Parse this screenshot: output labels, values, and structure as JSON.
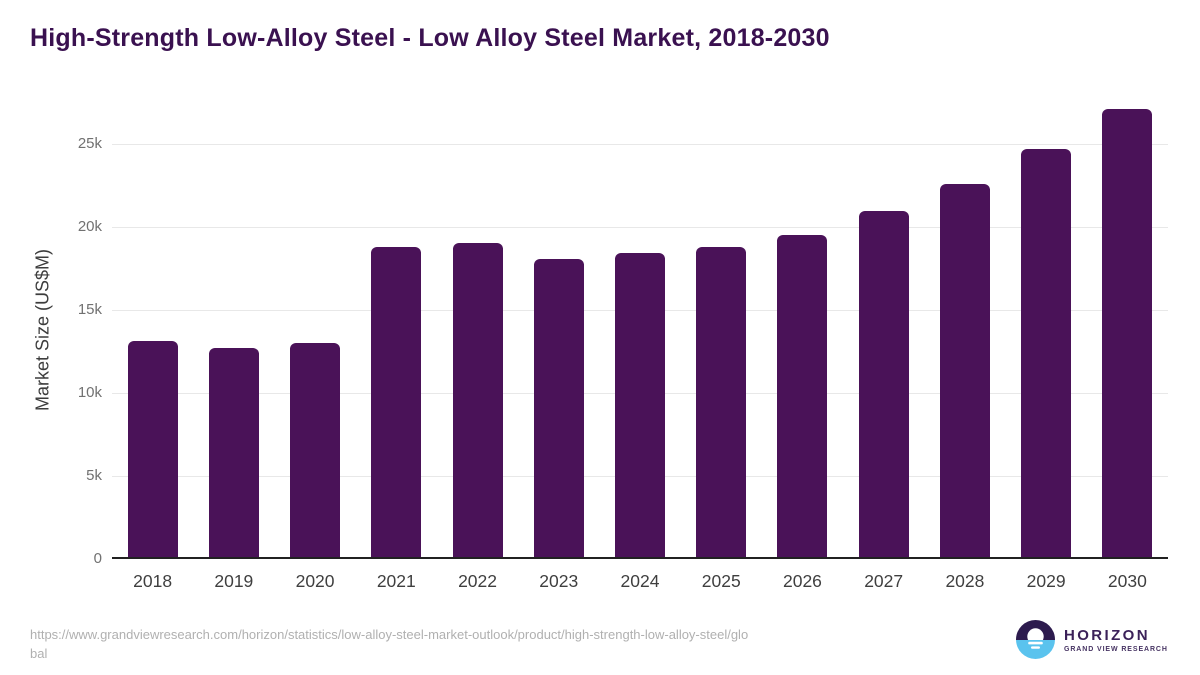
{
  "title": "High-Strength Low-Alloy Steel - Low Alloy Steel Market, 2018-2030",
  "chart_data": {
    "type": "bar",
    "categories": [
      "2018",
      "2019",
      "2020",
      "2021",
      "2022",
      "2023",
      "2024",
      "2025",
      "2026",
      "2027",
      "2028",
      "2029",
      "2030"
    ],
    "values": [
      12990,
      12580,
      12900,
      18660,
      18930,
      17970,
      18310,
      18690,
      19400,
      20820,
      22490,
      24590,
      26990
    ],
    "title": "High-Strength Low-Alloy Steel - Low Alloy Steel Market, 2018-2030",
    "xlabel": "",
    "ylabel": "Market Size (US$M)",
    "ylim": [
      0,
      27500
    ],
    "yticks": [
      0,
      5000,
      10000,
      15000,
      20000,
      25000
    ],
    "ytick_labels": [
      "0",
      "5k",
      "10k",
      "15k",
      "20k",
      "25k"
    ],
    "grid": true,
    "legend_position": "none",
    "bar_color": "#4a1258"
  },
  "footer": {
    "source_url": "https://www.grandviewresearch.com/horizon/statistics/low-alloy-steel-market-outlook/product/high-strength-low-alloy-steel/global",
    "url_line1": "https://www.grandviewresearch.com/horizon/statistics/low-alloy-steel-market-outlook/product/high-strength-low-alloy-steel/glo",
    "url_line2": "bal"
  },
  "branding": {
    "logo_name": "HORIZON",
    "logo_subtitle": "GRAND VIEW RESEARCH",
    "logo_colors": {
      "dark_purple": "#2d1b4e",
      "light_blue": "#5ac3ee",
      "text_purple": "#3b2159"
    }
  },
  "colors": {
    "title_text": "#3a1150",
    "bar": "#4a1258",
    "y_tick_text": "#717171",
    "x_tick_text": "#3f3f3f",
    "gridline": "#e8e8e8",
    "axis_line": "#212121",
    "url_text": "#b0b0b0",
    "background": "#ffffff"
  }
}
